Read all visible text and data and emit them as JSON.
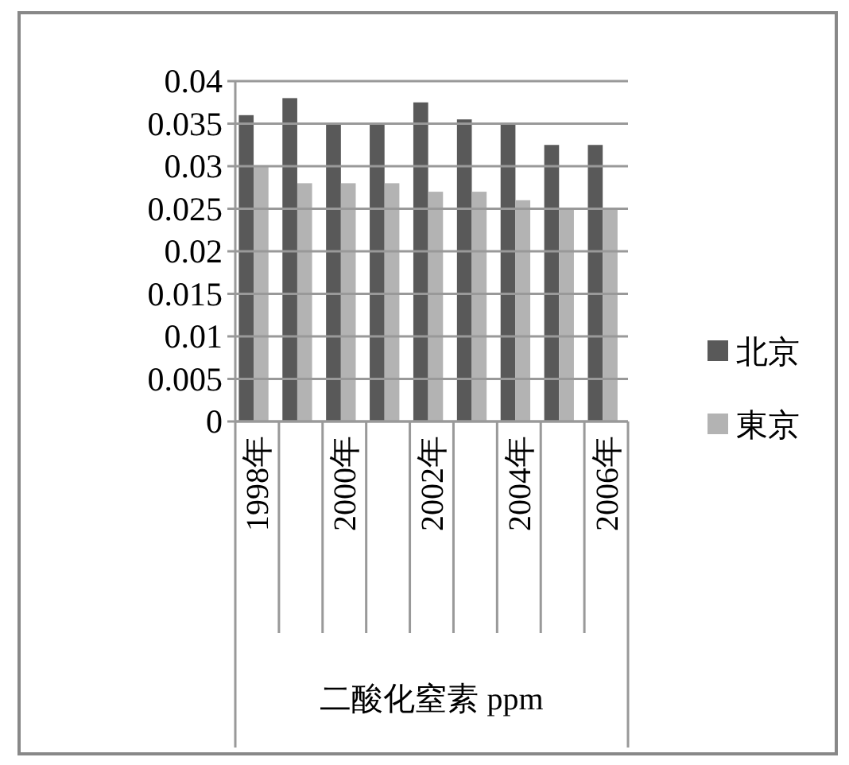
{
  "chart_data": {
    "type": "bar",
    "xlabel": "二酸化窒素  ppm",
    "categories": [
      "1998年",
      null,
      "2000年",
      null,
      "2002年",
      null,
      "2004年",
      null,
      "2006年"
    ],
    "series": [
      {
        "name": "北京",
        "color": "#595959",
        "values": [
          0.036,
          0.038,
          0.035,
          0.035,
          0.0375,
          0.0355,
          0.035,
          0.0325,
          0.0325
        ]
      },
      {
        "name": "東京",
        "color": "#b3b3b3",
        "values": [
          0.03,
          0.028,
          0.028,
          0.028,
          0.027,
          0.027,
          0.026,
          0.025,
          0.025
        ]
      }
    ],
    "ylim": [
      0,
      0.04
    ],
    "yticks": [
      0,
      0.005,
      0.01,
      0.015,
      0.02,
      0.025,
      0.03,
      0.035,
      0.04
    ],
    "grid": "y",
    "legend": "right"
  }
}
